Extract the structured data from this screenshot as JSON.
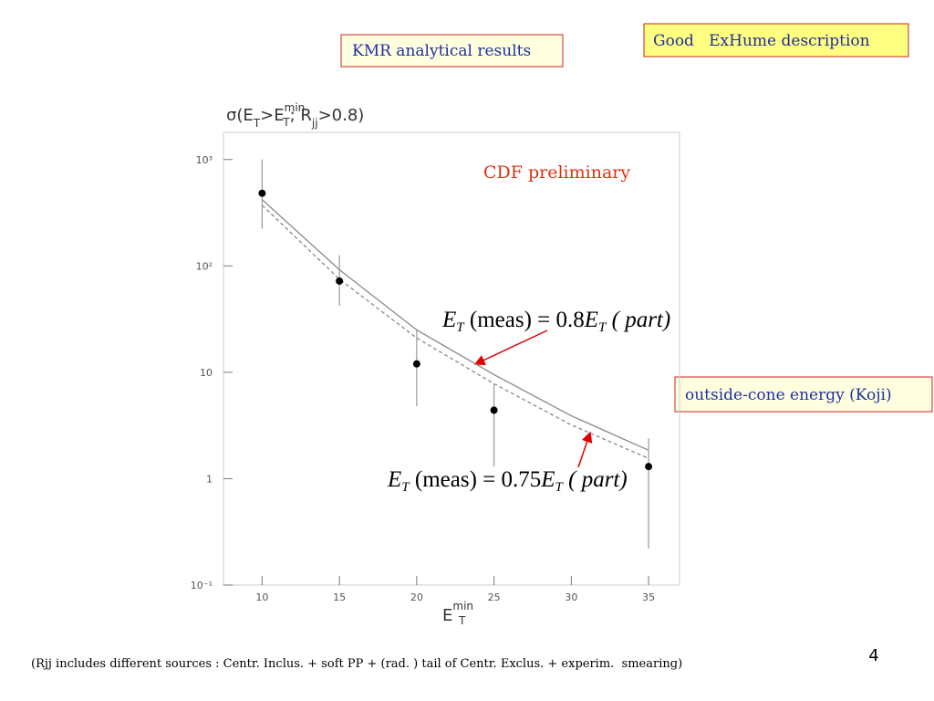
{
  "header": {
    "left_box": "KMR analytical results",
    "right_box": "Good   ExHume description"
  },
  "side_box": "outside-cone energy (Koji)",
  "footnote": "(Rjj includes different sources : Centr. Inclus. + soft PP + (rad. ) tail of Centr. Exclus. + experim.  smearing)",
  "page_number": "4",
  "chart_data": {
    "type": "scatter",
    "watermark": "CDF preliminary",
    "y_label": [
      "σ(E",
      "T",
      ">E",
      "min",
      "T",
      "; R",
      "jj",
      ">0.8)"
    ],
    "x_label": [
      "E",
      "min",
      "T"
    ],
    "x": [
      10,
      15,
      20,
      25,
      35
    ],
    "values": [
      482,
      72,
      12,
      4.4,
      1.3
    ],
    "upper": [
      1000,
      126,
      25,
      7.8,
      2.4
    ],
    "lower": [
      223,
      42,
      4.8,
      1.3,
      0.22
    ],
    "color": "#000000",
    "lines": [
      {
        "x": [
          10,
          15,
          20,
          25,
          30,
          35
        ],
        "values": [
          420,
          92,
          25,
          9.5,
          3.9,
          1.85
        ],
        "color": "#888888",
        "dashed": false,
        "annotation": [
          "E",
          "T",
          " (meas) = 0.8",
          "E",
          "T",
          " ( part)"
        ]
      },
      {
        "x": [
          10,
          15,
          20,
          25,
          30,
          35
        ],
        "values": [
          372,
          75,
          21,
          7.8,
          3.2,
          1.55
        ],
        "color": "#888888",
        "dashed": true,
        "annotation": [
          "E",
          "T",
          " (meas) = 0.75",
          "E",
          "T",
          " ( part)"
        ]
      }
    ],
    "xlim": [
      7.5,
      37
    ],
    "ylim": [
      0.1,
      1800
    ],
    "log_y": true,
    "xticks": [
      10,
      15,
      20,
      25,
      30,
      35
    ],
    "yticks": [
      {
        "value": 0.1,
        "label": "10⁻¹"
      },
      1,
      10,
      {
        "value": 100,
        "label": "10²"
      },
      {
        "value": 1000,
        "label": "10³"
      }
    ]
  }
}
